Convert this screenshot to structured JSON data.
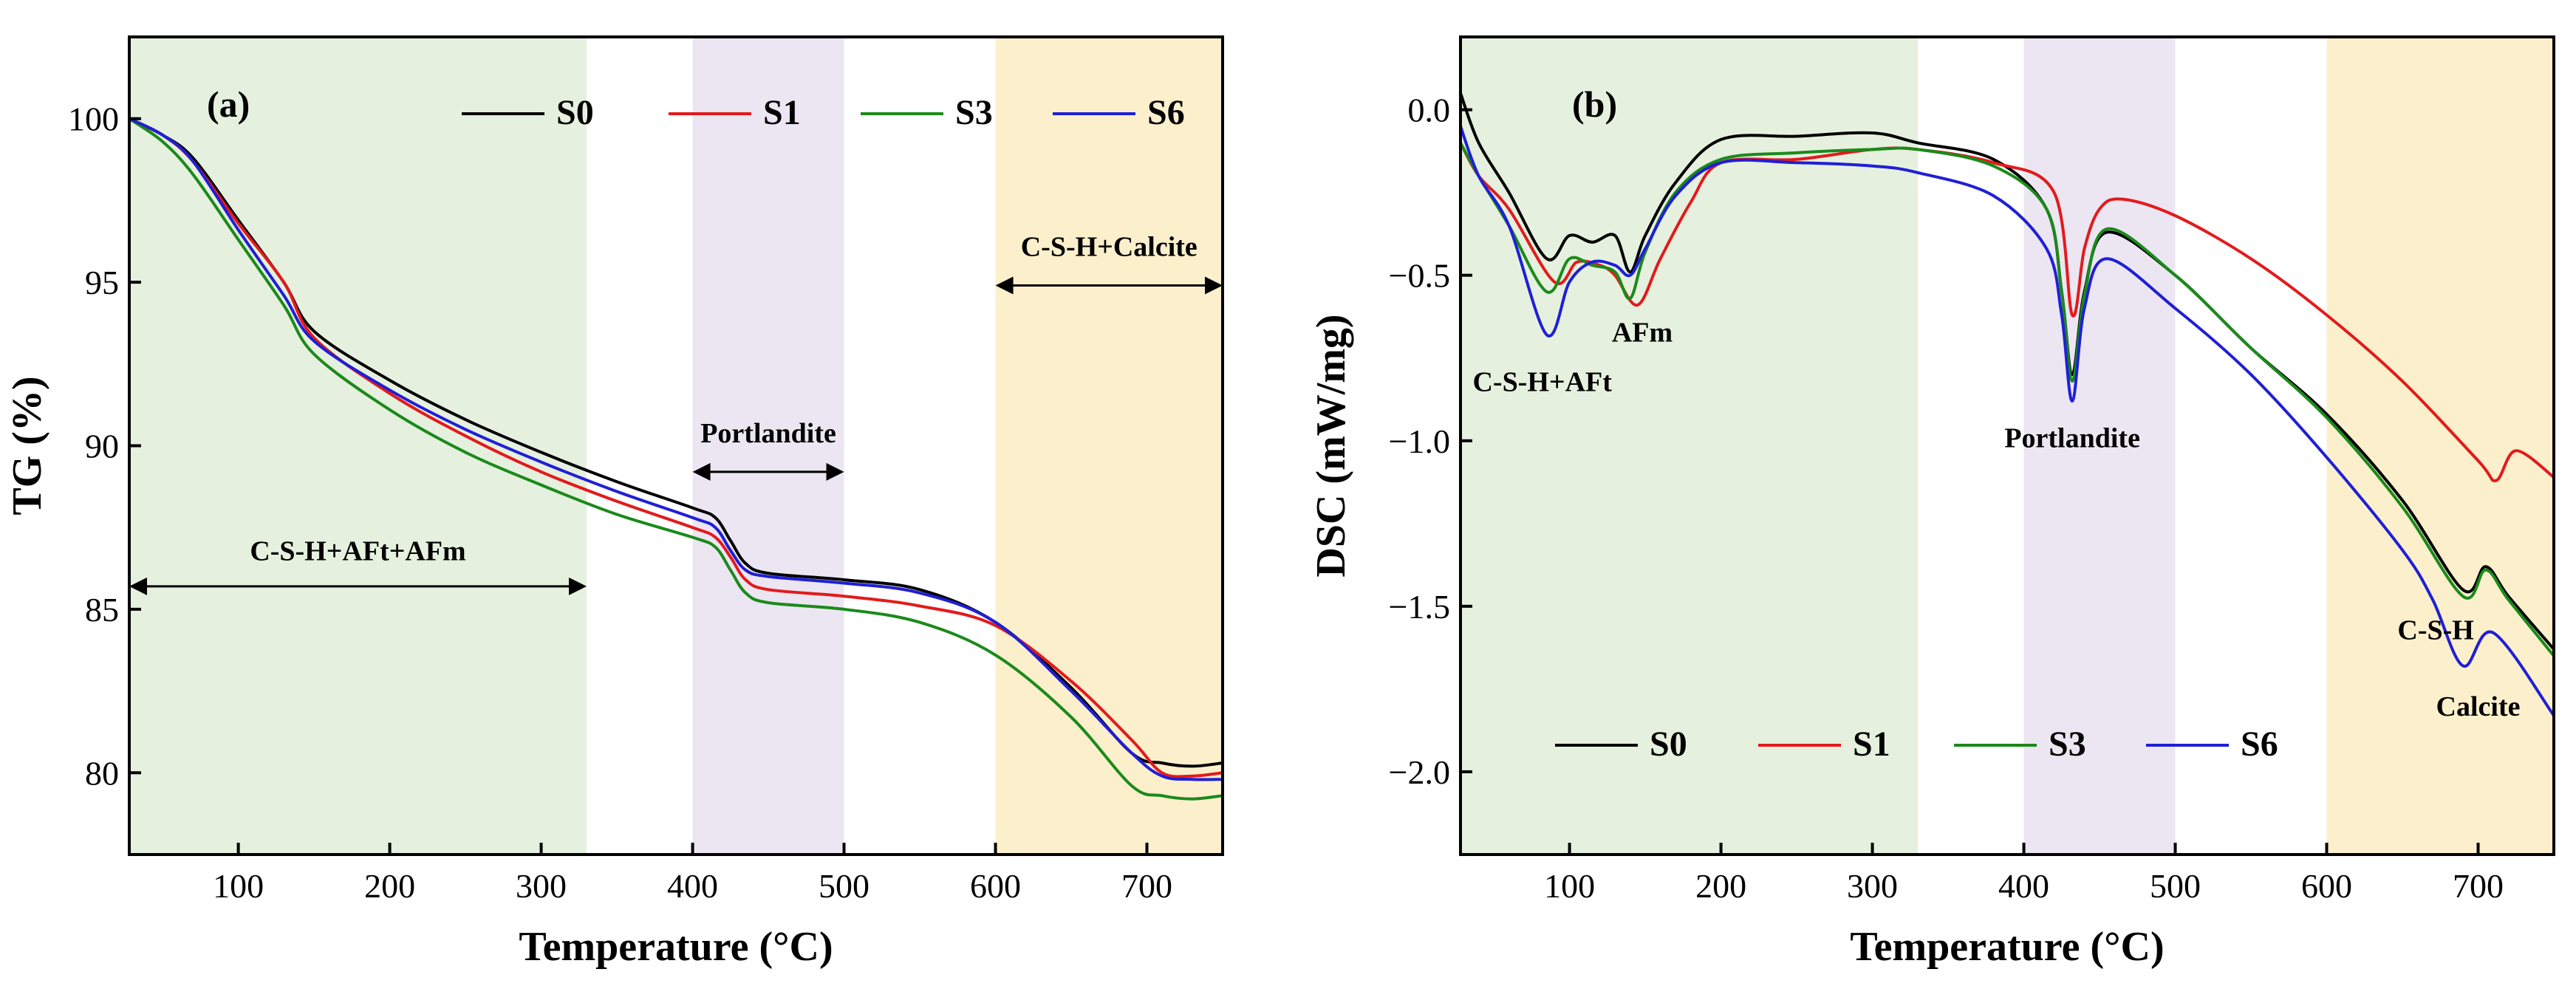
{
  "colors": {
    "S0": "#000000",
    "S1": "#e31a1c",
    "S3": "#1a8a1a",
    "S6": "#1f1fd6",
    "band_green": "#e6f0de",
    "band_purple": "#ebe6f2",
    "band_yellow": "#fcefcc"
  },
  "chart_data": [
    {
      "type": "line",
      "panel_label": "(a)",
      "xlabel": "Temperature (°C)",
      "ylabel": "TG (%)",
      "xlim": [
        28,
        750
      ],
      "ylim": [
        77.5,
        102.5
      ],
      "xticks": [
        100,
        200,
        300,
        400,
        500,
        600,
        700
      ],
      "yticks": [
        80,
        85,
        90,
        95,
        100
      ],
      "legend_position": "top",
      "regions": [
        {
          "name": "C-S-H+AFt+AFm",
          "x": [
            28,
            330
          ],
          "color_key": "band_green",
          "label": "C-S-H+AFt+AFm",
          "arrow_y": 85.7,
          "label_y": 86.5
        },
        {
          "name": "Portlandite",
          "x": [
            400,
            500
          ],
          "color_key": "band_purple",
          "label": "Portlandite",
          "arrow_y": 89.2,
          "label_y": 90.1
        },
        {
          "name": "C-S-H+Calcite",
          "x": [
            600,
            750
          ],
          "color_key": "band_yellow",
          "label": "C-S-H+Calcite",
          "arrow_y": 94.9,
          "label_y": 95.8
        }
      ],
      "series": [
        {
          "name": "S0",
          "x": [
            28,
            50,
            70,
            100,
            130,
            150,
            200,
            250,
            300,
            350,
            400,
            415,
            425,
            435,
            450,
            500,
            550,
            600,
            650,
            690,
            710,
            730,
            750
          ],
          "y": [
            100,
            99.5,
            98.8,
            96.9,
            95.0,
            93.5,
            92.0,
            90.8,
            89.8,
            88.9,
            88.1,
            87.8,
            87.1,
            86.4,
            86.1,
            85.9,
            85.6,
            84.6,
            82.6,
            80.6,
            80.3,
            80.2,
            80.3
          ]
        },
        {
          "name": "S1",
          "x": [
            28,
            50,
            70,
            100,
            130,
            150,
            200,
            250,
            300,
            350,
            400,
            415,
            425,
            435,
            450,
            500,
            550,
            600,
            650,
            690,
            710,
            730,
            750
          ],
          "y": [
            100,
            99.5,
            98.7,
            96.8,
            95.0,
            93.3,
            91.6,
            90.3,
            89.2,
            88.3,
            87.5,
            87.2,
            86.6,
            85.9,
            85.6,
            85.4,
            85.1,
            84.5,
            82.8,
            81.0,
            80.0,
            79.9,
            80.0
          ]
        },
        {
          "name": "S3",
          "x": [
            28,
            50,
            70,
            100,
            130,
            150,
            200,
            250,
            300,
            350,
            400,
            415,
            425,
            435,
            450,
            500,
            550,
            600,
            650,
            690,
            710,
            730,
            750
          ],
          "y": [
            100,
            99.3,
            98.3,
            96.3,
            94.3,
            92.8,
            91.1,
            89.8,
            88.8,
            87.9,
            87.2,
            86.9,
            86.2,
            85.5,
            85.2,
            85.0,
            84.6,
            83.6,
            81.7,
            79.6,
            79.3,
            79.2,
            79.3
          ]
        },
        {
          "name": "S6",
          "x": [
            28,
            50,
            70,
            100,
            130,
            150,
            200,
            250,
            300,
            350,
            400,
            415,
            425,
            435,
            450,
            500,
            550,
            600,
            650,
            690,
            710,
            730,
            750
          ],
          "y": [
            100,
            99.5,
            98.7,
            96.6,
            94.6,
            93.2,
            91.7,
            90.5,
            89.5,
            88.6,
            87.8,
            87.5,
            86.8,
            86.2,
            86.0,
            85.8,
            85.5,
            84.6,
            82.5,
            80.6,
            79.9,
            79.8,
            79.8
          ]
        }
      ]
    },
    {
      "type": "line",
      "panel_label": "(b)",
      "xlabel": "Temperature (°C)",
      "ylabel": "DSC (mW/mg)",
      "xlim": [
        28,
        750
      ],
      "ylim": [
        -2.25,
        0.22
      ],
      "xticks": [
        100,
        200,
        300,
        400,
        500,
        600,
        700
      ],
      "yticks": [
        0.0,
        -0.5,
        -1.0,
        -1.5,
        -2.0
      ],
      "ytick_labels": [
        "0.0",
        "−0.5",
        "−1.0",
        "−1.5",
        "−2.0"
      ],
      "legend_position": "bottom",
      "regions": [
        {
          "name": "green",
          "x": [
            28,
            330
          ],
          "color_key": "band_green"
        },
        {
          "name": "purple",
          "x": [
            400,
            500
          ],
          "color_key": "band_purple"
        },
        {
          "name": "yellow",
          "x": [
            600,
            750
          ],
          "color_key": "band_yellow"
        }
      ],
      "annotations": [
        {
          "text": "C-S-H+AFt",
          "x": 82,
          "y": -0.85
        },
        {
          "text": "AFm",
          "x": 148,
          "y": -0.7
        },
        {
          "text": "Portlandite",
          "x": 432,
          "y": -1.02
        },
        {
          "text": "C-S-H",
          "x": 672,
          "y": -1.6
        },
        {
          "text": "Calcite",
          "x": 700,
          "y": -1.83
        }
      ],
      "series": [
        {
          "name": "S0",
          "x": [
            28,
            40,
            60,
            85,
            100,
            115,
            130,
            140,
            150,
            170,
            200,
            250,
            300,
            330,
            380,
            415,
            425,
            432,
            440,
            455,
            500,
            550,
            600,
            650,
            690,
            705,
            720,
            750
          ],
          "y": [
            0.05,
            -0.1,
            -0.25,
            -0.45,
            -0.38,
            -0.4,
            -0.38,
            -0.49,
            -0.38,
            -0.22,
            -0.09,
            -0.08,
            -0.07,
            -0.1,
            -0.15,
            -0.3,
            -0.55,
            -0.8,
            -0.55,
            -0.37,
            -0.5,
            -0.72,
            -0.92,
            -1.18,
            -1.45,
            -1.38,
            -1.47,
            -1.63
          ]
        },
        {
          "name": "S1",
          "x": [
            28,
            40,
            60,
            90,
            105,
            120,
            130,
            145,
            160,
            180,
            200,
            250,
            300,
            330,
            380,
            420,
            432,
            440,
            450,
            465,
            500,
            550,
            600,
            650,
            700,
            712,
            725,
            750
          ],
          "y": [
            -0.1,
            -0.2,
            -0.3,
            -0.52,
            -0.46,
            -0.47,
            -0.5,
            -0.59,
            -0.45,
            -0.28,
            -0.16,
            -0.15,
            -0.12,
            -0.12,
            -0.16,
            -0.25,
            -0.62,
            -0.42,
            -0.3,
            -0.27,
            -0.32,
            -0.45,
            -0.62,
            -0.82,
            -1.06,
            -1.12,
            -1.03,
            -1.11
          ]
        },
        {
          "name": "S3",
          "x": [
            28,
            40,
            60,
            85,
            100,
            115,
            130,
            140,
            150,
            170,
            200,
            250,
            300,
            330,
            380,
            415,
            425,
            432,
            440,
            455,
            500,
            550,
            600,
            650,
            690,
            705,
            720,
            750
          ],
          "y": [
            -0.1,
            -0.2,
            -0.35,
            -0.55,
            -0.45,
            -0.47,
            -0.49,
            -0.57,
            -0.43,
            -0.25,
            -0.15,
            -0.13,
            -0.12,
            -0.12,
            -0.17,
            -0.3,
            -0.55,
            -0.82,
            -0.56,
            -0.36,
            -0.5,
            -0.72,
            -0.93,
            -1.2,
            -1.47,
            -1.39,
            -1.48,
            -1.65
          ]
        },
        {
          "name": "S6",
          "x": [
            28,
            40,
            60,
            85,
            100,
            115,
            130,
            140,
            150,
            170,
            200,
            250,
            300,
            330,
            380,
            415,
            425,
            432,
            440,
            455,
            500,
            550,
            600,
            650,
            670,
            690,
            710,
            750
          ],
          "y": [
            -0.05,
            -0.2,
            -0.35,
            -0.68,
            -0.52,
            -0.46,
            -0.47,
            -0.5,
            -0.42,
            -0.26,
            -0.16,
            -0.16,
            -0.17,
            -0.19,
            -0.26,
            -0.42,
            -0.62,
            -0.88,
            -0.6,
            -0.45,
            -0.6,
            -0.8,
            -1.05,
            -1.33,
            -1.48,
            -1.68,
            -1.58,
            -1.83
          ]
        }
      ]
    }
  ]
}
